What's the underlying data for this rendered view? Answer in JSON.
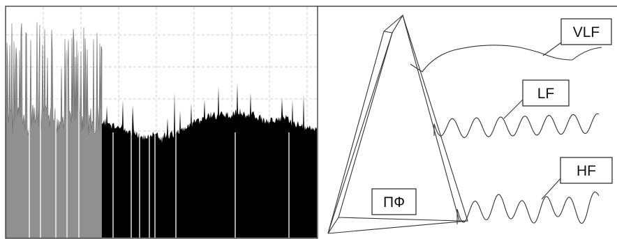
{
  "labels": {
    "vlf": "VLF",
    "lf": "LF",
    "hf": "HF",
    "filter": "ПФ"
  },
  "colors": {
    "signal_light": "#909090",
    "signal_dark": "#000000",
    "grid": "#bcbcbc",
    "lines": "#333333",
    "background": "#ffffff"
  }
}
